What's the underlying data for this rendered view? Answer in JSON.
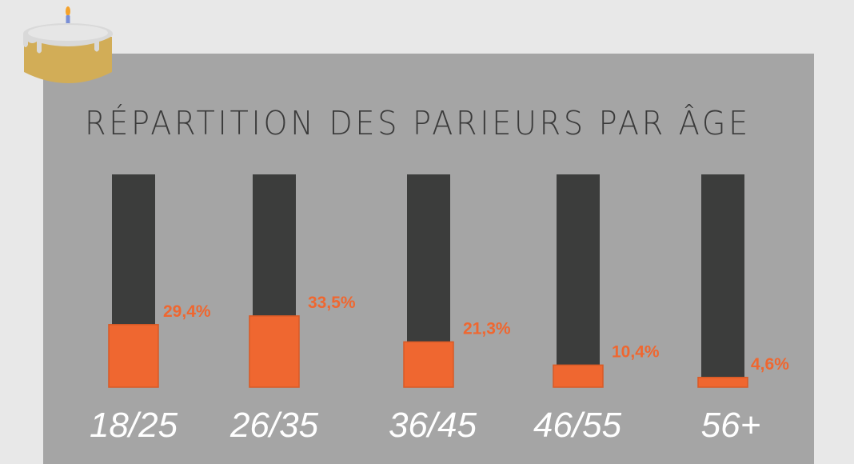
{
  "chart_data": {
    "type": "bar",
    "title": "RÉPARTITION DES PARIEURS PAR ÂGE",
    "categories": [
      "18/25",
      "26/35",
      "36/45",
      "46/55",
      "56+"
    ],
    "values": [
      29.4,
      33.5,
      21.3,
      10.4,
      4.6
    ],
    "value_labels": [
      "29,4%",
      "33,5%",
      "21,3%",
      "10,4%",
      "4,6%"
    ],
    "unit": "%",
    "ylim": [
      0,
      100
    ],
    "grid": false,
    "legend": "none"
  },
  "colors": {
    "background": "#e8e8e8",
    "panel": "#a5a5a5",
    "bar_track": "#3c3d3c",
    "bar_fill": "#ef6730",
    "value_label": "#ef6730",
    "category_label": "#ffffff",
    "title": "#3a3a3a",
    "cake_body": "#d2ad57",
    "cake_icing": "#d9d9d9",
    "candle": "#7a8fd6",
    "flame": "#f4a22b"
  },
  "decoration": {
    "icon": "birthday-cake-icon"
  }
}
